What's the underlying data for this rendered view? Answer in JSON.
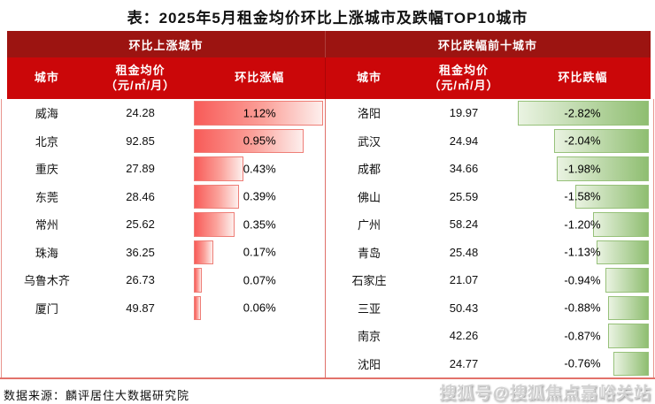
{
  "page": {
    "title": "表：2025年5月租金均价环比上涨城市及跌幅TOP10城市",
    "source": "数据来源：麟评居住大数据研究院",
    "watermark": "搜狐号@搜狐焦点嘉峪关站"
  },
  "colors": {
    "section_band_red": "#9C1411",
    "column_header_red": "#CB0709",
    "divider_salmon": "#DF7069",
    "rise_bar_start": "#F85B58",
    "rise_bar_end": "#FDEFED",
    "rise_bar_border": "#EE7E77",
    "fall_bar_start": "#EAF3E2",
    "fall_bar_end": "#8FBE71",
    "fall_bar_border": "#97C17A"
  },
  "chart_data": [
    {
      "type": "bar",
      "section_title": "环比上涨城市",
      "columns": [
        "城市",
        "租金均价",
        "（元/㎡/月）",
        "环比涨幅"
      ],
      "bar_palette": "red",
      "bar_anchor": "left",
      "max_abs_change": 1.12,
      "rows": [
        {
          "city": "威海",
          "price": "24.28",
          "change": 1.12,
          "label": "1.12%"
        },
        {
          "city": "北京",
          "price": "92.85",
          "change": 0.95,
          "label": "0.95%"
        },
        {
          "city": "重庆",
          "price": "27.89",
          "change": 0.43,
          "label": "0.43%"
        },
        {
          "city": "东莞",
          "price": "28.46",
          "change": 0.39,
          "label": "0.39%"
        },
        {
          "city": "常州",
          "price": "25.62",
          "change": 0.35,
          "label": "0.35%"
        },
        {
          "city": "珠海",
          "price": "36.25",
          "change": 0.17,
          "label": "0.17%"
        },
        {
          "city": "乌鲁木齐",
          "price": "26.73",
          "change": 0.07,
          "label": "0.07%"
        },
        {
          "city": "厦门",
          "price": "49.87",
          "change": 0.06,
          "label": "0.06%"
        }
      ]
    },
    {
      "type": "bar",
      "section_title": "环比跌幅前十城市",
      "columns": [
        "城市",
        "租金均价",
        "（元/㎡/月）",
        "环比跌幅"
      ],
      "bar_palette": "green",
      "bar_anchor": "right",
      "max_abs_change": 2.82,
      "rows": [
        {
          "city": "洛阳",
          "price": "19.97",
          "change": -2.82,
          "label": "-2.82%"
        },
        {
          "city": "武汉",
          "price": "24.94",
          "change": -2.04,
          "label": "-2.04%"
        },
        {
          "city": "成都",
          "price": "34.66",
          "change": -1.98,
          "label": "-1.98%"
        },
        {
          "city": "佛山",
          "price": "25.59",
          "change": -1.58,
          "label": "-1.58%"
        },
        {
          "city": "广州",
          "price": "58.24",
          "change": -1.2,
          "label": "-1.20%"
        },
        {
          "city": "青岛",
          "price": "25.48",
          "change": -1.13,
          "label": "-1.13%"
        },
        {
          "city": "石家庄",
          "price": "21.07",
          "change": -0.94,
          "label": "-0.94%"
        },
        {
          "city": "三亚",
          "price": "50.43",
          "change": -0.88,
          "label": "-0.88%"
        },
        {
          "city": "南京",
          "price": "42.26",
          "change": -0.87,
          "label": "-0.87%"
        },
        {
          "city": "沈阳",
          "price": "24.77",
          "change": -0.76,
          "label": "-0.76%"
        }
      ]
    }
  ]
}
